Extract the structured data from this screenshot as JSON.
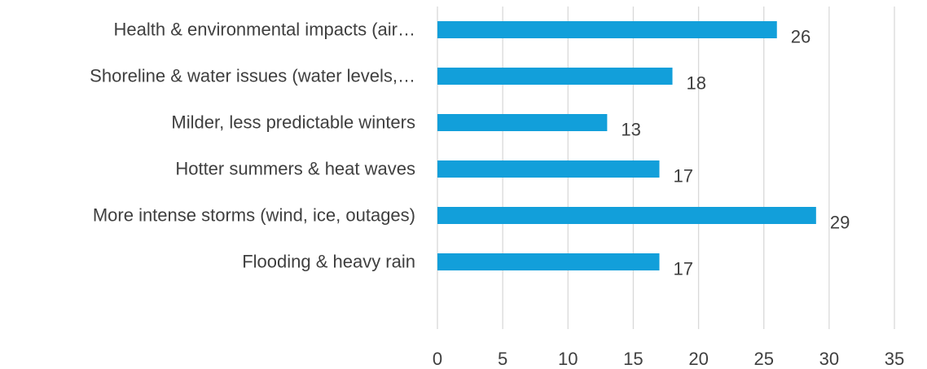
{
  "chart_data": {
    "type": "bar",
    "orientation": "horizontal",
    "categories": [
      "Health & environmental impacts (air…",
      "Shoreline & water issues (water levels,…",
      "Milder, less predictable winters",
      "Hotter summers & heat waves",
      "More intense storms (wind, ice, outages)",
      "Flooding & heavy rain"
    ],
    "values": [
      26,
      18,
      13,
      17,
      29,
      17
    ],
    "data_labels": [
      "26",
      "18",
      "13",
      "17",
      "29",
      "17"
    ],
    "xlim": [
      0,
      35
    ],
    "x_ticks": [
      0,
      5,
      10,
      15,
      20,
      25,
      30,
      35
    ],
    "x_tick_labels": [
      "0",
      "5",
      "10",
      "15",
      "20",
      "25",
      "30",
      "35"
    ],
    "grid": "vertical",
    "legend": "none",
    "title": "",
    "xlabel": "",
    "ylabel": "",
    "colors": {
      "bar": "#129fda",
      "gridline": "#d9d9d9",
      "text": "#3f3f3f"
    }
  }
}
